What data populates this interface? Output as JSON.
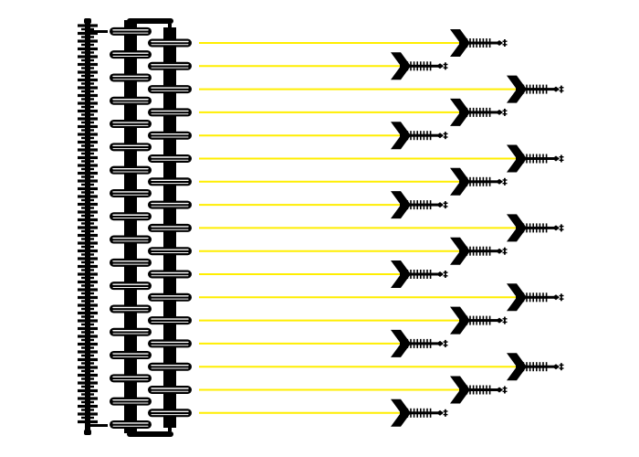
{
  "diagram": {
    "lines": 17,
    "arrow_column_pattern": [
      2,
      1,
      3
    ],
    "colors": {
      "background": "#ffffff",
      "line": "#ffee00",
      "ink": "#000000",
      "highlight": "#ffffff"
    },
    "icons": {
      "line_head": "fletched-arrow-icon",
      "rail_left": "notched-rail-icon",
      "rail_mid": "insulator-stack-icon",
      "rail_right": "insulator-stack-icon"
    }
  }
}
